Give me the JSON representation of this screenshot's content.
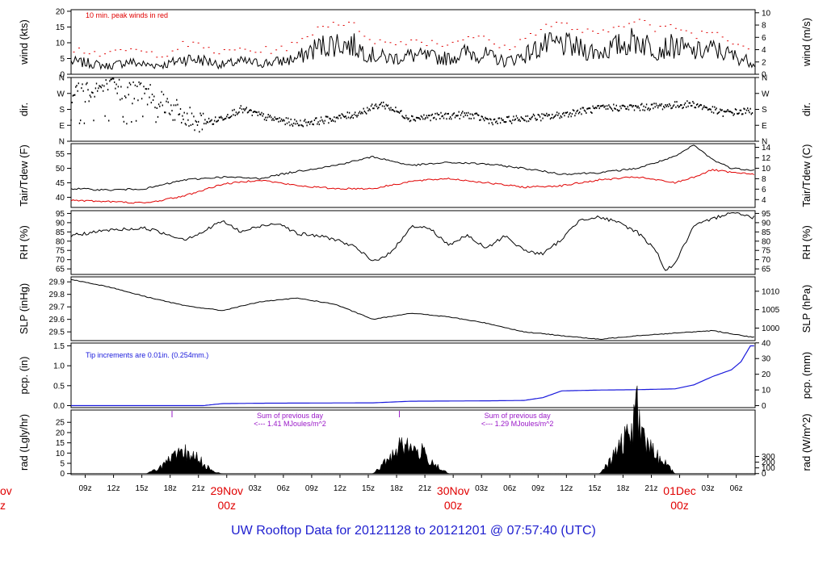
{
  "title": "UW Rooftop Data for 20121128  to  20121201 @ 07:57:40  (UTC)",
  "colors": {
    "axis": "#000000",
    "peak": "#e00000",
    "dew": "#e00000",
    "precip": "#1a1adc",
    "note_blue": "#1a1adc",
    "note_purple": "#9a18c8",
    "title": "#2020d0",
    "day": "#e00000"
  },
  "x_axis": {
    "hour_labels": [
      "09z",
      "12z",
      "15z",
      "18z",
      "21z",
      "03z",
      "06z",
      "09z",
      "12z",
      "15z",
      "18z",
      "21z",
      "03z",
      "06z",
      "09z",
      "12z",
      "15z",
      "18z",
      "21z",
      "03z",
      "06z"
    ],
    "day_labels": [
      {
        "date": "29Nov",
        "time": "00z"
      },
      {
        "date": "30Nov",
        "time": "00z"
      },
      {
        "date": "01Dec",
        "time": "00z"
      }
    ],
    "cut_day_left": "ov",
    "cut_time_left": "z"
  },
  "panels": {
    "wind": {
      "left_label": "wind (kts)",
      "right_label": "wind (m/s)",
      "left_ticks": [
        "0",
        "5",
        "10",
        "15",
        "20"
      ],
      "right_ticks": [
        "0",
        "2",
        "4",
        "6",
        "8",
        "10"
      ],
      "note": "10 min. peak winds in red"
    },
    "dir": {
      "left_label": "dir.",
      "right_label": "dir.",
      "left_ticks": [
        "N",
        "E",
        "S",
        "W",
        "N"
      ],
      "right_ticks": [
        "N",
        "E",
        "S",
        "W",
        "N"
      ]
    },
    "temp": {
      "left_label": "Tair/Tdew (F)",
      "right_label": "Tair/Tdew (C)",
      "left_ticks": [
        "40",
        "45",
        "50",
        "55"
      ],
      "right_ticks": [
        "4",
        "6",
        "8",
        "10",
        "12",
        "14"
      ]
    },
    "rh": {
      "left_label": "RH (%)",
      "right_label": "RH (%)",
      "left_ticks": [
        "65",
        "70",
        "75",
        "80",
        "85",
        "90",
        "95"
      ],
      "right_ticks": [
        "65",
        "70",
        "75",
        "80",
        "85",
        "90",
        "95"
      ]
    },
    "slp": {
      "left_label": "SLP (inHg)",
      "right_label": "SLP (hPa)",
      "left_ticks": [
        "29.5",
        "29.6",
        "29.7",
        "29.8",
        "29.9"
      ],
      "right_ticks": [
        "1000",
        "1005",
        "1010"
      ]
    },
    "pcp": {
      "left_label": "pcp. (in)",
      "right_label": "pcp. (mm)",
      "left_ticks": [
        "0.0",
        "0.5",
        "1.0",
        "1.5"
      ],
      "right_ticks": [
        "0",
        "10",
        "20",
        "30",
        "40"
      ],
      "note": "Tip increments are 0.01in. (0.254mm.)"
    },
    "rad": {
      "left_label": "rad (Lgly/hr)",
      "right_label": "rad (W/m^2)",
      "left_ticks": [
        "0",
        "5",
        "10",
        "15",
        "20",
        "25"
      ],
      "right_ticks": [
        "0",
        "100",
        "200",
        "300"
      ],
      "sum_title": "Sum of previous day",
      "sum_notes": [
        "<--- 1.41 MJoules/m^2",
        "<--- 1.29 MJoules/m^2"
      ]
    }
  },
  "chart_data": {
    "type": "line",
    "x_unit": "hours since 2012-11-28 07:30 UTC",
    "x_range": [
      0,
      72.5
    ],
    "series": [
      {
        "name": "wind speed (kts)",
        "x": [
          0,
          2,
          4,
          6,
          8,
          10,
          12,
          14,
          16,
          18,
          20,
          22,
          24,
          26,
          28,
          30,
          32,
          34,
          36,
          38,
          40,
          42,
          44,
          46,
          48,
          50,
          52,
          54,
          56,
          58,
          60,
          62,
          64,
          66,
          68,
          70,
          72
        ],
        "y": [
          4,
          3.5,
          2.5,
          4,
          3,
          3,
          5,
          4.5,
          3,
          4,
          3.5,
          4,
          5,
          8.5,
          10,
          9,
          6,
          5,
          6,
          5.5,
          5,
          7,
          6,
          4,
          6,
          9,
          9.5,
          8,
          7,
          9,
          11,
          8,
          9,
          7,
          8,
          6,
          4
        ]
      },
      {
        "name": "wind direction (deg)",
        "x": [
          0,
          3,
          6,
          9,
          12,
          15,
          18,
          21,
          24,
          27,
          30,
          33,
          36,
          39,
          42,
          45,
          48,
          51,
          54,
          57,
          60,
          63,
          66,
          69,
          72
        ],
        "y": [
          270,
          300,
          280,
          260,
          130,
          110,
          180,
          130,
          100,
          120,
          150,
          210,
          130,
          140,
          150,
          110,
          130,
          140,
          170,
          190,
          190,
          200,
          210,
          160,
          170
        ]
      },
      {
        "name": "Tair (F)",
        "x": [
          0,
          4,
          8,
          12,
          16,
          20,
          24,
          28,
          32,
          36,
          40,
          44,
          48,
          52,
          56,
          60,
          64,
          66,
          68,
          70,
          72
        ],
        "y": [
          43,
          42.5,
          43,
          46,
          47,
          46.5,
          49,
          51,
          54,
          51,
          52,
          51.5,
          50,
          48,
          48.5,
          50,
          54,
          58,
          53,
          50,
          49.5
        ]
      },
      {
        "name": "Tdew (F)",
        "x": [
          0,
          4,
          8,
          12,
          16,
          20,
          24,
          28,
          32,
          36,
          40,
          44,
          48,
          52,
          56,
          60,
          64,
          66,
          68,
          70,
          72
        ],
        "y": [
          39,
          38.5,
          38,
          40.5,
          44.5,
          46,
          44,
          43,
          43,
          45.5,
          46.5,
          45,
          43.5,
          44,
          46,
          47,
          45,
          47,
          49.5,
          48.5,
          48
        ]
      },
      {
        "name": "RH (%)",
        "x": [
          0,
          4,
          8,
          12,
          14,
          16,
          18,
          20,
          22,
          24,
          26,
          28,
          30,
          32,
          34,
          36,
          38,
          40,
          42,
          44,
          46,
          48,
          50,
          52,
          54,
          56,
          58,
          60,
          62,
          63,
          64,
          66,
          68,
          70,
          72
        ],
        "y": [
          83,
          86,
          87,
          81,
          85,
          91,
          85,
          88,
          90,
          84,
          83,
          81,
          77,
          69,
          74,
          88,
          87,
          78,
          83,
          76,
          83,
          75,
          73,
          81,
          92,
          93,
          90,
          85,
          75,
          64,
          68,
          88,
          92,
          96,
          93
        ]
      },
      {
        "name": "SLP (inHg)",
        "x": [
          0,
          4,
          8,
          12,
          16,
          20,
          24,
          28,
          32,
          36,
          40,
          44,
          48,
          52,
          56,
          60,
          64,
          68,
          72
        ],
        "y": [
          29.92,
          29.86,
          29.78,
          29.71,
          29.67,
          29.74,
          29.77,
          29.72,
          29.6,
          29.65,
          29.62,
          29.57,
          29.5,
          29.47,
          29.44,
          29.47,
          29.49,
          29.51,
          29.46
        ]
      },
      {
        "name": "precip (in, cumulative)",
        "x": [
          0,
          14,
          16,
          20,
          32,
          36,
          44,
          48,
          50,
          52,
          56,
          60,
          64,
          66,
          68,
          70,
          71,
          72
        ],
        "y": [
          0,
          0,
          0.05,
          0.06,
          0.07,
          0.11,
          0.12,
          0.13,
          0.2,
          0.37,
          0.39,
          0.4,
          0.42,
          0.52,
          0.73,
          0.9,
          1.1,
          1.5
        ]
      },
      {
        "name": "radiation (Lgly/hr)",
        "x": [
          0,
          8,
          9,
          10,
          11,
          12,
          13,
          14,
          15,
          16,
          32,
          33,
          34,
          35,
          36,
          37,
          38,
          39,
          40,
          56,
          57,
          58,
          59,
          60,
          61,
          62,
          63,
          64
        ],
        "y": [
          0,
          0,
          2,
          5,
          8,
          10,
          9,
          5,
          1,
          0,
          0,
          4,
          9,
          16,
          12,
          11,
          7,
          3,
          0,
          0,
          5,
          12,
          18,
          30,
          14,
          9,
          5,
          0
        ]
      }
    ]
  }
}
